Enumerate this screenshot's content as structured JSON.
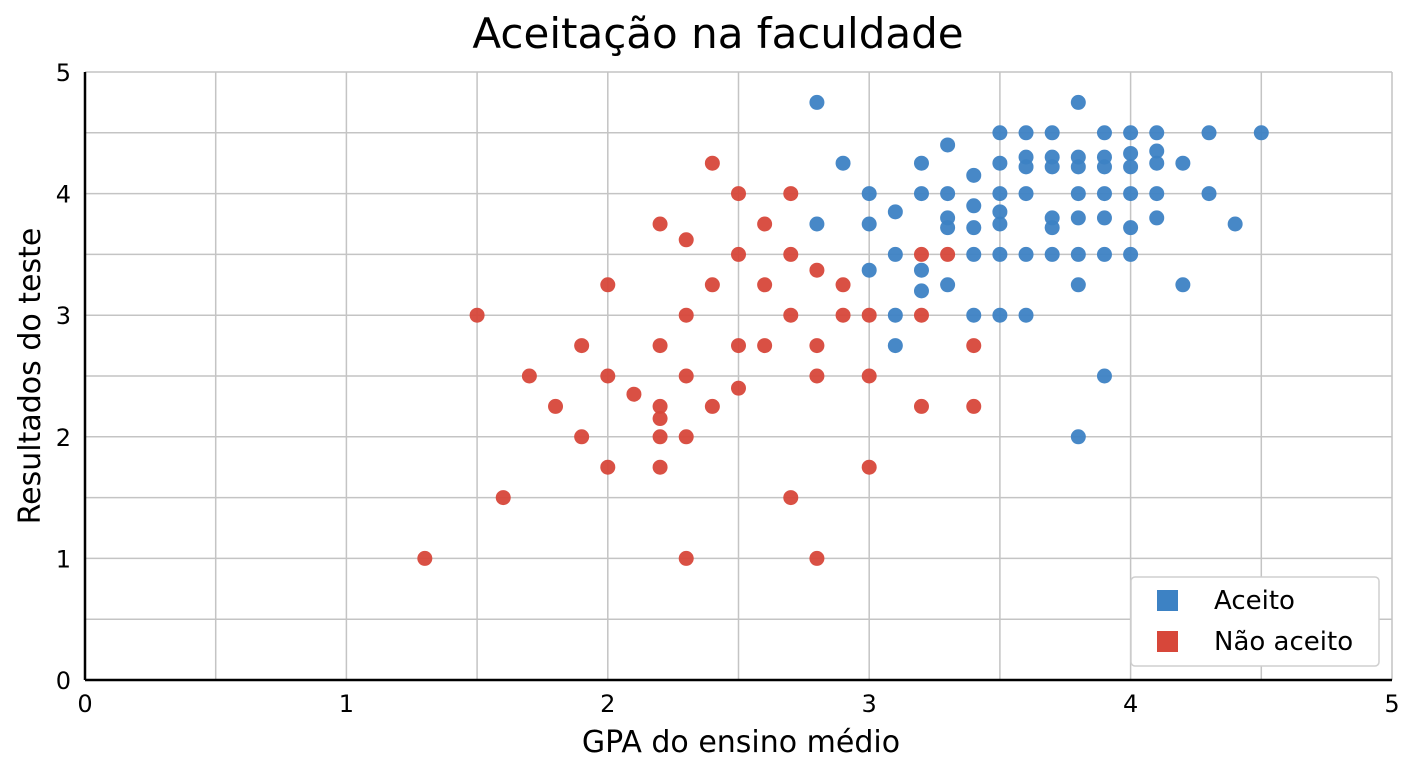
{
  "chart_data": {
    "type": "scatter",
    "title": "Aceitação na faculdade",
    "xlabel": "GPA do ensino médio",
    "ylabel": "Resultados do teste",
    "xlim": [
      0,
      5
    ],
    "ylim": [
      0,
      5
    ],
    "xticks": [
      "0",
      "1",
      "2",
      "3",
      "4",
      "5"
    ],
    "yticks": [
      "0",
      "1",
      "2",
      "3",
      "4",
      "5"
    ],
    "grid": true,
    "grid_minor_step": 0.5,
    "legend_position": "lower-right",
    "series": [
      {
        "name": "Aceito",
        "color": "#3d82c4",
        "points": [
          [
            2.8,
            4.75
          ],
          [
            3.8,
            4.75
          ],
          [
            3.5,
            4.5
          ],
          [
            3.6,
            4.5
          ],
          [
            3.7,
            4.5
          ],
          [
            3.9,
            4.5
          ],
          [
            4.0,
            4.5
          ],
          [
            4.1,
            4.5
          ],
          [
            4.3,
            4.5
          ],
          [
            4.5,
            4.5
          ],
          [
            3.3,
            4.4
          ],
          [
            3.6,
            4.3
          ],
          [
            3.7,
            4.3
          ],
          [
            3.8,
            4.3
          ],
          [
            3.9,
            4.3
          ],
          [
            4.0,
            4.33
          ],
          [
            4.1,
            4.35
          ],
          [
            2.9,
            4.25
          ],
          [
            3.2,
            4.25
          ],
          [
            3.5,
            4.25
          ],
          [
            4.2,
            4.25
          ],
          [
            3.6,
            4.22
          ],
          [
            3.7,
            4.22
          ],
          [
            3.8,
            4.22
          ],
          [
            3.9,
            4.22
          ],
          [
            4.0,
            4.22
          ],
          [
            4.1,
            4.25
          ],
          [
            3.4,
            4.15
          ],
          [
            3.0,
            4.0
          ],
          [
            3.2,
            4.0
          ],
          [
            3.3,
            4.0
          ],
          [
            3.5,
            4.0
          ],
          [
            3.6,
            4.0
          ],
          [
            3.8,
            4.0
          ],
          [
            3.9,
            4.0
          ],
          [
            4.0,
            4.0
          ],
          [
            4.1,
            4.0
          ],
          [
            4.3,
            4.0
          ],
          [
            3.4,
            3.9
          ],
          [
            3.1,
            3.85
          ],
          [
            3.5,
            3.85
          ],
          [
            3.3,
            3.8
          ],
          [
            3.7,
            3.8
          ],
          [
            3.8,
            3.8
          ],
          [
            3.9,
            3.8
          ],
          [
            4.1,
            3.8
          ],
          [
            2.8,
            3.75
          ],
          [
            3.0,
            3.75
          ],
          [
            3.5,
            3.75
          ],
          [
            4.4,
            3.75
          ],
          [
            3.3,
            3.72
          ],
          [
            3.4,
            3.72
          ],
          [
            3.7,
            3.72
          ],
          [
            4.0,
            3.72
          ],
          [
            3.1,
            3.5
          ],
          [
            3.4,
            3.5
          ],
          [
            3.5,
            3.5
          ],
          [
            3.6,
            3.5
          ],
          [
            3.7,
            3.5
          ],
          [
            3.8,
            3.5
          ],
          [
            3.9,
            3.5
          ],
          [
            4.0,
            3.5
          ],
          [
            3.0,
            3.37
          ],
          [
            3.2,
            3.37
          ],
          [
            3.3,
            3.25
          ],
          [
            3.8,
            3.25
          ],
          [
            4.2,
            3.25
          ],
          [
            3.2,
            3.2
          ],
          [
            3.1,
            3.0
          ],
          [
            3.4,
            3.0
          ],
          [
            3.5,
            3.0
          ],
          [
            3.6,
            3.0
          ],
          [
            3.1,
            2.75
          ],
          [
            3.9,
            2.5
          ],
          [
            3.8,
            2.0
          ]
        ]
      },
      {
        "name": "Não aceito",
        "color": "#d7473a",
        "points": [
          [
            2.4,
            4.25
          ],
          [
            2.5,
            4.0
          ],
          [
            2.7,
            4.0
          ],
          [
            2.2,
            3.75
          ],
          [
            2.6,
            3.75
          ],
          [
            2.3,
            3.62
          ],
          [
            2.5,
            3.5
          ],
          [
            2.7,
            3.5
          ],
          [
            3.2,
            3.5
          ],
          [
            3.3,
            3.5
          ],
          [
            2.8,
            3.37
          ],
          [
            2.0,
            3.25
          ],
          [
            2.4,
            3.25
          ],
          [
            2.6,
            3.25
          ],
          [
            2.9,
            3.25
          ],
          [
            1.5,
            3.0
          ],
          [
            2.3,
            3.0
          ],
          [
            2.7,
            3.0
          ],
          [
            2.9,
            3.0
          ],
          [
            3.0,
            3.0
          ],
          [
            3.2,
            3.0
          ],
          [
            1.9,
            2.75
          ],
          [
            2.2,
            2.75
          ],
          [
            2.5,
            2.75
          ],
          [
            2.6,
            2.75
          ],
          [
            2.8,
            2.75
          ],
          [
            3.4,
            2.75
          ],
          [
            1.7,
            2.5
          ],
          [
            2.0,
            2.5
          ],
          [
            2.3,
            2.5
          ],
          [
            2.8,
            2.5
          ],
          [
            3.0,
            2.5
          ],
          [
            2.5,
            2.4
          ],
          [
            2.1,
            2.35
          ],
          [
            1.8,
            2.25
          ],
          [
            2.2,
            2.25
          ],
          [
            2.4,
            2.25
          ],
          [
            3.2,
            2.25
          ],
          [
            3.4,
            2.25
          ],
          [
            2.2,
            2.15
          ],
          [
            1.9,
            2.0
          ],
          [
            2.2,
            2.0
          ],
          [
            2.3,
            2.0
          ],
          [
            2.0,
            1.75
          ],
          [
            2.2,
            1.75
          ],
          [
            3.0,
            1.75
          ],
          [
            1.6,
            1.5
          ],
          [
            2.7,
            1.5
          ],
          [
            1.3,
            1.0
          ],
          [
            2.3,
            1.0
          ],
          [
            2.8,
            1.0
          ]
        ]
      }
    ]
  }
}
